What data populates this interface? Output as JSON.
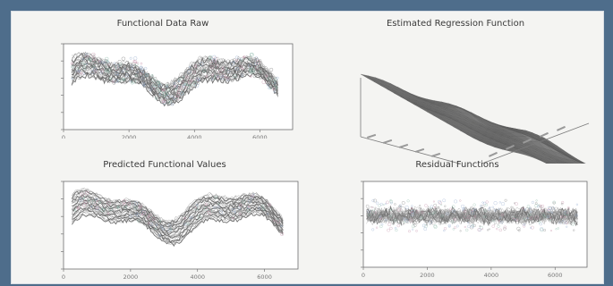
{
  "chart_data": [
    {
      "type": "scatter",
      "title": "Functional Data Raw",
      "xlabel": "",
      "ylabel": "",
      "x_ticks": [
        "0",
        "2000",
        "4000",
        "6000"
      ],
      "y_ticks": [
        "",
        "",
        "",
        "",
        ""
      ],
      "xlim": [
        0,
        7000
      ],
      "ylim": [
        -3,
        2
      ]
    },
    {
      "type": "surface",
      "title": "Estimated Regression Function",
      "xlabel": "",
      "ylabel": "",
      "zlabel": ""
    },
    {
      "type": "line",
      "title": "Predicted Functional Values",
      "xlabel": "",
      "ylabel": "",
      "x_ticks": [
        "0",
        "2000",
        "4000",
        "6000"
      ],
      "y_ticks": [
        "",
        "",
        "",
        "",
        ""
      ],
      "xlim": [
        0,
        7000
      ],
      "ylim": [
        -3,
        2
      ]
    },
    {
      "type": "scatter",
      "title": "Residual Functions",
      "xlabel": "",
      "ylabel": "",
      "x_ticks": [
        "0",
        "2000",
        "4000",
        "6000"
      ],
      "y_ticks": [
        "",
        "",
        "",
        "",
        ""
      ],
      "xlim": [
        0,
        7000
      ],
      "ylim": [
        -3,
        2
      ]
    }
  ]
}
